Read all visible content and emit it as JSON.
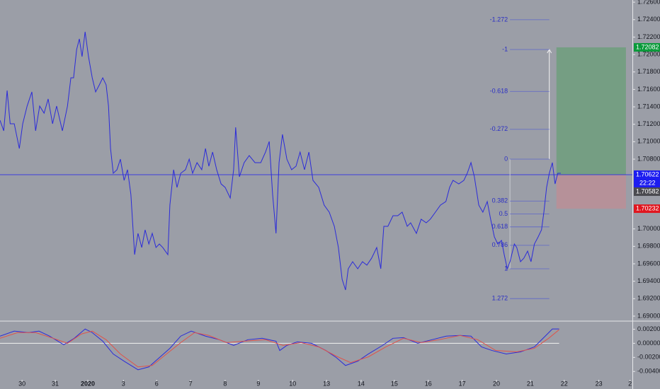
{
  "chart_data": [
    {
      "type": "line",
      "xlim": [
        -0.65,
        18.0
      ],
      "ylim": [
        1.68951,
        1.72625
      ],
      "yticks": [
        {
          "value": 1.726,
          "label": "1.72600"
        },
        {
          "value": 1.724,
          "label": "1.72400"
        },
        {
          "value": 1.722,
          "label": "1.72200"
        },
        {
          "value": 1.72,
          "label": "1.72000"
        },
        {
          "value": 1.718,
          "label": "1.71800"
        },
        {
          "value": 1.716,
          "label": "1.71600"
        },
        {
          "value": 1.714,
          "label": "1.71400"
        },
        {
          "value": 1.712,
          "label": "1.71200"
        },
        {
          "value": 1.71,
          "label": "1.71000"
        },
        {
          "value": 1.708,
          "label": "1.70800"
        },
        {
          "value": 1.7,
          "label": "1.70000"
        },
        {
          "value": 1.698,
          "label": "1.69800"
        },
        {
          "value": 1.696,
          "label": "1.69600"
        },
        {
          "value": 1.694,
          "label": "1.69400"
        },
        {
          "value": 1.692,
          "label": "1.69200"
        },
        {
          "value": 1.69,
          "label": "1.69000"
        }
      ],
      "series": [
        {
          "color": "#2b2bd9",
          "x": [
            -0.65,
            -0.54,
            -0.44,
            -0.35,
            -0.23,
            -0.08,
            0.02,
            0.15,
            0.29,
            0.4,
            0.52,
            0.65,
            0.77,
            0.9,
            1.02,
            1.19,
            1.34,
            1.44,
            1.52,
            1.61,
            1.69,
            1.77,
            1.86,
            1.96,
            2.07,
            2.17,
            2.28,
            2.38,
            2.48,
            2.55,
            2.61,
            2.69,
            2.8,
            2.9,
            3.01,
            3.11,
            3.21,
            3.32,
            3.42,
            3.53,
            3.63,
            3.74,
            3.84,
            3.95,
            4.05,
            4.15,
            4.3,
            4.36,
            4.47,
            4.57,
            4.68,
            4.82,
            4.93,
            5.03,
            5.16,
            5.3,
            5.41,
            5.51,
            5.62,
            5.74,
            5.87,
            5.99,
            6.14,
            6.24,
            6.3,
            6.41,
            6.55,
            6.7,
            6.87,
            7.04,
            7.18,
            7.29,
            7.39,
            7.49,
            7.58,
            7.68,
            7.81,
            7.95,
            8.08,
            8.2,
            8.33,
            8.46,
            8.58,
            8.75,
            8.91,
            9.06,
            9.21,
            9.33,
            9.44,
            9.54,
            9.62,
            9.75,
            9.9,
            10.04,
            10.17,
            10.31,
            10.46,
            10.58,
            10.67,
            10.79,
            10.94,
            11.08,
            11.21,
            11.36,
            11.46,
            11.63,
            11.77,
            11.92,
            12.04,
            12.19,
            12.34,
            12.5,
            12.61,
            12.71,
            12.88,
            13.03,
            13.13,
            13.24,
            13.34,
            13.47,
            13.59,
            13.72,
            13.82,
            13.93,
            14.03,
            14.14,
            14.22,
            14.31,
            14.39,
            14.52,
            14.59,
            14.7,
            14.8,
            14.91,
            15.01,
            15.11,
            15.22,
            15.32,
            15.39,
            15.47,
            15.55,
            15.64,
            15.72,
            15.8,
            15.89
          ],
          "values": [
            1.71246,
            1.71125,
            1.71587,
            1.71206,
            1.71206,
            1.70922,
            1.71206,
            1.71409,
            1.71571,
            1.71125,
            1.71409,
            1.71327,
            1.7149,
            1.71206,
            1.71409,
            1.71125,
            1.71409,
            1.71733,
            1.71733,
            1.72057,
            1.72179,
            1.71976,
            1.7226,
            1.71976,
            1.71733,
            1.71571,
            1.71652,
            1.71733,
            1.71652,
            1.71409,
            1.70922,
            1.70638,
            1.70679,
            1.708,
            1.70557,
            1.70679,
            1.70395,
            1.69705,
            1.69949,
            1.69787,
            1.69989,
            1.69827,
            1.69949,
            1.69787,
            1.69827,
            1.69787,
            1.69705,
            1.70273,
            1.70679,
            1.70476,
            1.70638,
            1.70679,
            1.708,
            1.70638,
            1.7076,
            1.70679,
            1.70922,
            1.70719,
            1.70881,
            1.70679,
            1.70516,
            1.70476,
            1.70354,
            1.70679,
            1.71165,
            1.70598,
            1.7076,
            1.70841,
            1.7076,
            1.7076,
            1.70881,
            1.71003,
            1.70395,
            1.69949,
            1.7076,
            1.71084,
            1.708,
            1.70679,
            1.70719,
            1.70881,
            1.70679,
            1.70881,
            1.70557,
            1.70476,
            1.70273,
            1.70192,
            1.7003,
            1.69787,
            1.69422,
            1.693,
            1.69543,
            1.69624,
            1.69543,
            1.69624,
            1.69584,
            1.69665,
            1.69787,
            1.69543,
            1.7003,
            1.7003,
            1.70151,
            1.70151,
            1.70192,
            1.7003,
            1.7007,
            1.69949,
            1.70111,
            1.7007,
            1.70111,
            1.70192,
            1.70273,
            1.70314,
            1.70476,
            1.70557,
            1.70516,
            1.70557,
            1.70638,
            1.7076,
            1.70598,
            1.70273,
            1.70192,
            1.70314,
            1.70111,
            1.69908,
            1.69827,
            1.69868,
            1.69705,
            1.69543,
            1.69624,
            1.69827,
            1.69787,
            1.69624,
            1.69665,
            1.69746,
            1.69624,
            1.69827,
            1.69908,
            1.69989,
            1.70192,
            1.70476,
            1.70638,
            1.7076,
            1.70516,
            1.70638,
            1.70638
          ]
        }
      ],
      "price_tags": [
        {
          "value": 1.72082,
          "label": "1.72082",
          "color": "#0a9a3a"
        },
        {
          "value": 1.70622,
          "label": "1.70622",
          "color": "#1c1cf0"
        },
        {
          "value": 1.70582,
          "label": "1.70582",
          "color": "#4a4a4f"
        },
        {
          "value": 1.70232,
          "label": "1.70232",
          "color": "#e0161f"
        }
      ],
      "countdown": "22:22",
      "position_x": [
        15.76,
        17.81
      ],
      "fib": {
        "levels": [
          -1.272,
          -1,
          -0.618,
          -0.272,
          0,
          0.382,
          0.5,
          0.618,
          0.786,
          1,
          1.272
        ],
        "price_0": 1.708,
        "price_1": 1.69543,
        "x": [
          14.39,
          15.55
        ]
      }
    },
    {
      "type": "line",
      "xlim": [
        -0.65,
        18.0
      ],
      "ylim": [
        -0.00508,
        0.00305
      ],
      "yticks": [
        {
          "value": 0.002,
          "label": "0.00200"
        },
        {
          "value": 0,
          "label": "0.00000"
        },
        {
          "value": -0.002,
          "label": "-0.00200"
        },
        {
          "value": -0.004,
          "label": "-0.00400"
        }
      ],
      "xticks": [
        {
          "value": 0,
          "label": "30"
        },
        {
          "value": 0.98,
          "label": "31"
        },
        {
          "value": 1.94,
          "label": "2020"
        },
        {
          "value": 2.99,
          "label": "3"
        },
        {
          "value": 3.97,
          "label": "6"
        },
        {
          "value": 4.97,
          "label": "7"
        },
        {
          "value": 5.99,
          "label": "8"
        },
        {
          "value": 6.97,
          "label": "9"
        },
        {
          "value": 7.98,
          "label": "10"
        },
        {
          "value": 8.98,
          "label": "13"
        },
        {
          "value": 10.0,
          "label": "14"
        },
        {
          "value": 10.98,
          "label": "15"
        },
        {
          "value": 11.98,
          "label": "16"
        },
        {
          "value": 12.98,
          "label": "17"
        },
        {
          "value": 13.99,
          "label": "20"
        },
        {
          "value": 14.99,
          "label": "21"
        },
        {
          "value": 15.99,
          "label": "22"
        },
        {
          "value": 17.01,
          "label": "23"
        },
        {
          "value": 17.93,
          "label": "2"
        }
      ],
      "series": [
        {
          "color": "#2b2bd9",
          "x": [
            -0.65,
            -0.23,
            0.19,
            0.5,
            0.81,
            1.23,
            1.54,
            1.86,
            2.07,
            2.38,
            2.69,
            3.01,
            3.42,
            3.74,
            4.05,
            4.36,
            4.68,
            4.99,
            5.41,
            5.82,
            6.24,
            6.66,
            7.08,
            7.49,
            7.6,
            7.81,
            8.12,
            8.54,
            8.96,
            9.27,
            9.54,
            9.9,
            10.21,
            10.63,
            10.94,
            11.25,
            11.67,
            12.09,
            12.51,
            12.92,
            13.24,
            13.55,
            13.86,
            14.28,
            14.7,
            15.11,
            15.43,
            15.64,
            15.84
          ],
          "values": [
            0.00102,
            0.00173,
            0.00152,
            0.00173,
            0.00102,
            -0.0002,
            0.00071,
            0.00203,
            0.00152,
            0.0003,
            -0.00152,
            -0.00254,
            -0.00376,
            -0.00335,
            -0.00203,
            -0.00071,
            0.00102,
            0.00173,
            0.00102,
            0.00051,
            -0.0003,
            0.00051,
            0.00071,
            0.0003,
            -0.00102,
            -0.0003,
            0.0002,
            0,
            -0.00102,
            -0.00203,
            -0.00315,
            -0.00254,
            -0.00152,
            -0.0003,
            0.00071,
            0.00081,
            0,
            0.00051,
            0.00102,
            0.00112,
            0.00102,
            -0.00051,
            -0.00102,
            -0.00152,
            -0.00122,
            -0.00051,
            0.00102,
            0.00203,
            0.00203
          ]
        },
        {
          "color": "#e0534a",
          "x": [
            -0.65,
            -0.13,
            0.4,
            0.92,
            1.34,
            1.75,
            2.07,
            2.48,
            2.9,
            3.42,
            3.84,
            4.26,
            4.68,
            5.09,
            5.51,
            6.03,
            6.55,
            7.18,
            7.7,
            8.23,
            8.75,
            9.27,
            9.69,
            10.21,
            10.73,
            11.25,
            11.77,
            12.3,
            12.92,
            13.44,
            13.97,
            14.59,
            15.11,
            15.53,
            15.84
          ],
          "values": [
            0.00071,
            0.00152,
            0.00152,
            0.00071,
            0,
            0.00132,
            0.00173,
            0.00051,
            -0.00152,
            -0.00335,
            -0.00315,
            -0.00152,
            0.0001,
            0.00152,
            0.00112,
            0.0001,
            0.0003,
            0.00051,
            -0.0003,
            0.0001,
            -0.00051,
            -0.00183,
            -0.00274,
            -0.00193,
            -0.00051,
            0.00071,
            0.0001,
            0.00051,
            0.00112,
            0.00051,
            -0.00102,
            -0.00122,
            -0.00071,
            0.00071,
            0.00193
          ]
        }
      ]
    }
  ]
}
